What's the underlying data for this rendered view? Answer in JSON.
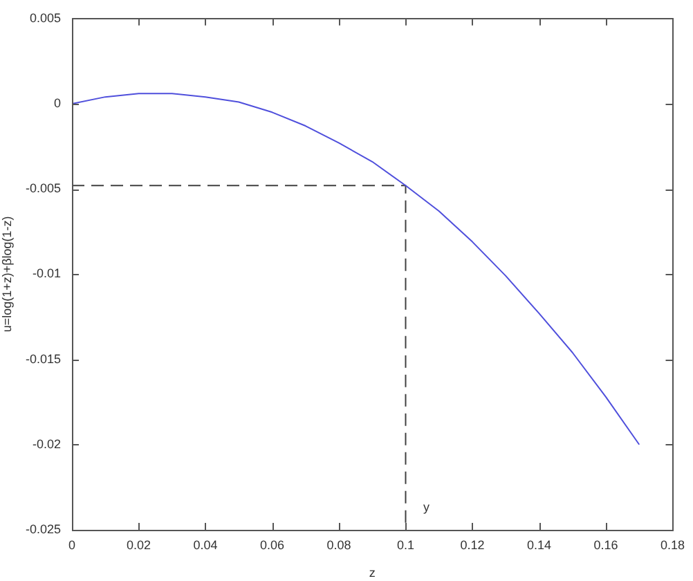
{
  "chart_data": {
    "type": "line",
    "xlabel": "z",
    "ylabel": "u=log(1+z)+βlog(1-z)",
    "series": [
      {
        "color": "#4f4fdc",
        "x": [
          0,
          0.01,
          0.02,
          0.03,
          0.04,
          0.05,
          0.06,
          0.07,
          0.08,
          0.09,
          0.1,
          0.11,
          0.12,
          0.13,
          0.14,
          0.15,
          0.16,
          0.17
        ],
        "values": [
          0,
          0.0004,
          0.0006,
          0.0006,
          0.0004,
          0.0001,
          -0.0005,
          -0.0013,
          -0.0023,
          -0.0034,
          -0.0048,
          -0.0063,
          -0.0081,
          -0.0101,
          -0.0123,
          -0.0146,
          -0.0172,
          -0.02
        ]
      },
      {
        "color": "#404040",
        "line_style": "dashed",
        "x": [
          0,
          0.1,
          0.1
        ],
        "values": [
          -0.0048,
          -0.0048,
          -0.025
        ]
      }
    ],
    "annotations": [
      {
        "text": "y",
        "x": 0.1,
        "y": -0.025
      }
    ],
    "xlim": [
      0,
      0.18
    ],
    "xticks": [
      0,
      0.02,
      0.04,
      0.06,
      0.08,
      0.1,
      0.12,
      0.14,
      0.16,
      0.18
    ],
    "ylim": [
      -0.025,
      0.005
    ],
    "yticks": [
      -0.025,
      -0.02,
      -0.015,
      -0.01,
      -0.005,
      0,
      0.005
    ],
    "marker": "none",
    "line_style": "solid"
  }
}
